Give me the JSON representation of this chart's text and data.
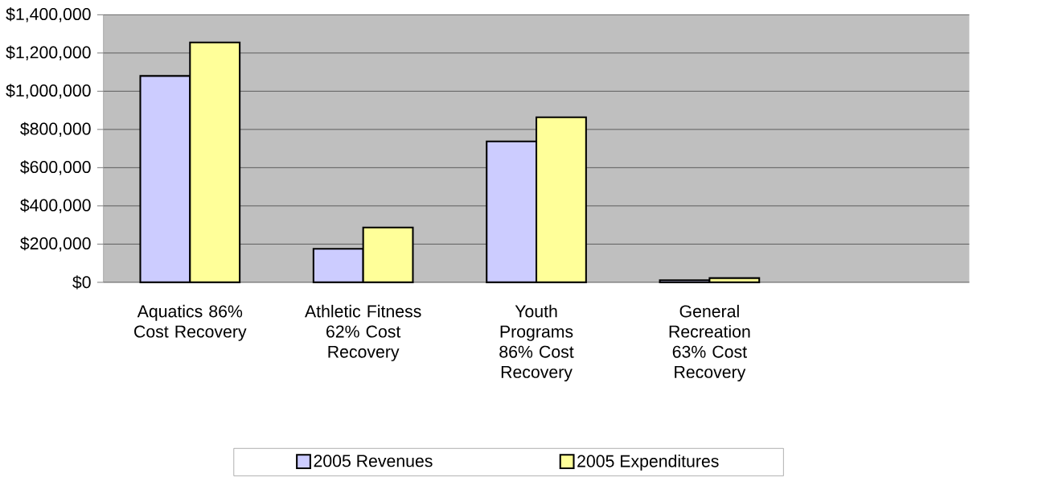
{
  "chart_data": {
    "type": "bar",
    "categories": [
      "Aquatics 86% Cost Recovery",
      "Athletic Fitness 62% Cost Recovery",
      "Youth Programs 86% Cost Recovery",
      "General Recreation 63% Cost Recovery",
      null
    ],
    "series": [
      {
        "name": "2005 Revenues",
        "color": "#ccccff",
        "values": [
          1080000,
          175000,
          737000,
          11000,
          null
        ]
      },
      {
        "name": "2005 Expenditures",
        "color": "#ffff99",
        "values": [
          1255000,
          287000,
          864000,
          22000,
          null
        ]
      }
    ],
    "ylim": [
      0,
      1400000
    ],
    "yticks": [
      {
        "value": 0,
        "label": "$0"
      },
      {
        "value": 200000,
        "label": "$200,000"
      },
      {
        "value": 400000,
        "label": "$400,000"
      },
      {
        "value": 600000,
        "label": "$600,000"
      },
      {
        "value": 800000,
        "label": "$800,000"
      },
      {
        "value": 1000000,
        "label": "$1,000,000"
      },
      {
        "value": 1200000,
        "label": "$1,200,000"
      },
      {
        "value": 1400000,
        "label": "$1,400,000"
      }
    ],
    "grid": "y",
    "legend": "bottom"
  }
}
